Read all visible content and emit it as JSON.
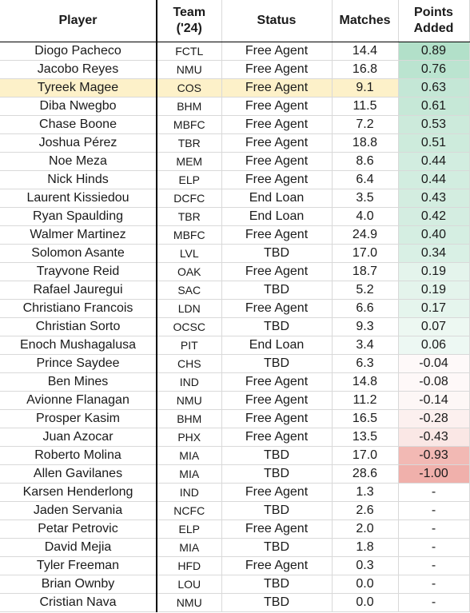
{
  "headers": {
    "player": "Player",
    "team_line1": "Team",
    "team_line2": "('24)",
    "status": "Status",
    "matches": "Matches",
    "pa_line1": "Points",
    "pa_line2": "Added"
  },
  "highlighted_player": "Tyreek Magee",
  "colors": {
    "highlight": "#fdf1c9",
    "positive": "#57bb8a",
    "negative": "#e67c73",
    "neutral": "#ffffff"
  },
  "rows": [
    {
      "player": "Diogo Pacheco",
      "team": "FCTL",
      "status": "Free Agent",
      "matches": "14.4",
      "points_added": "0.89",
      "value": 0.89
    },
    {
      "player": "Jacobo Reyes",
      "team": "NMU",
      "status": "Free Agent",
      "matches": "16.8",
      "points_added": "0.76",
      "value": 0.76
    },
    {
      "player": "Tyreek Magee",
      "team": "COS",
      "status": "Free Agent",
      "matches": "9.1",
      "points_added": "0.63",
      "value": 0.63
    },
    {
      "player": "Diba Nwegbo",
      "team": "BHM",
      "status": "Free Agent",
      "matches": "11.5",
      "points_added": "0.61",
      "value": 0.61
    },
    {
      "player": "Chase Boone",
      "team": "MBFC",
      "status": "Free Agent",
      "matches": "7.2",
      "points_added": "0.53",
      "value": 0.53
    },
    {
      "player": "Joshua Pérez",
      "team": "TBR",
      "status": "Free Agent",
      "matches": "18.8",
      "points_added": "0.51",
      "value": 0.51
    },
    {
      "player": "Noe Meza",
      "team": "MEM",
      "status": "Free Agent",
      "matches": "8.6",
      "points_added": "0.44",
      "value": 0.44
    },
    {
      "player": "Nick Hinds",
      "team": "ELP",
      "status": "Free Agent",
      "matches": "6.4",
      "points_added": "0.44",
      "value": 0.44
    },
    {
      "player": "Laurent Kissiedou",
      "team": "DCFC",
      "status": "End Loan",
      "matches": "3.5",
      "points_added": "0.43",
      "value": 0.43
    },
    {
      "player": "Ryan Spaulding",
      "team": "TBR",
      "status": "End Loan",
      "matches": "4.0",
      "points_added": "0.42",
      "value": 0.42
    },
    {
      "player": "Walmer Martinez",
      "team": "MBFC",
      "status": "Free Agent",
      "matches": "24.9",
      "points_added": "0.40",
      "value": 0.4
    },
    {
      "player": "Solomon Asante",
      "team": "LVL",
      "status": "TBD",
      "matches": "17.0",
      "points_added": "0.34",
      "value": 0.34
    },
    {
      "player": "Trayvone Reid",
      "team": "OAK",
      "status": "Free Agent",
      "matches": "18.7",
      "points_added": "0.19",
      "value": 0.19
    },
    {
      "player": "Rafael Jauregui",
      "team": "SAC",
      "status": "TBD",
      "matches": "5.2",
      "points_added": "0.19",
      "value": 0.19
    },
    {
      "player": "Christiano Francois",
      "team": "LDN",
      "status": "Free Agent",
      "matches": "6.6",
      "points_added": "0.17",
      "value": 0.17
    },
    {
      "player": "Christian Sorto",
      "team": "OCSC",
      "status": "TBD",
      "matches": "9.3",
      "points_added": "0.07",
      "value": 0.07
    },
    {
      "player": "Enoch Mushagalusa",
      "team": "PIT",
      "status": "End Loan",
      "matches": "3.4",
      "points_added": "0.06",
      "value": 0.06
    },
    {
      "player": "Prince Saydee",
      "team": "CHS",
      "status": "TBD",
      "matches": "6.3",
      "points_added": "-0.04",
      "value": -0.04
    },
    {
      "player": "Ben Mines",
      "team": "IND",
      "status": "Free Agent",
      "matches": "14.8",
      "points_added": "-0.08",
      "value": -0.08
    },
    {
      "player": "Avionne Flanagan",
      "team": "NMU",
      "status": "Free Agent",
      "matches": "11.2",
      "points_added": "-0.14",
      "value": -0.14
    },
    {
      "player": "Prosper Kasim",
      "team": "BHM",
      "status": "Free Agent",
      "matches": "16.5",
      "points_added": "-0.28",
      "value": -0.28
    },
    {
      "player": "Juan Azocar",
      "team": "PHX",
      "status": "Free Agent",
      "matches": "13.5",
      "points_added": "-0.43",
      "value": -0.43
    },
    {
      "player": "Roberto Molina",
      "team": "MIA",
      "status": "TBD",
      "matches": "17.0",
      "points_added": "-0.93",
      "value": -0.93
    },
    {
      "player": "Allen Gavilanes",
      "team": "MIA",
      "status": "TBD",
      "matches": "28.6",
      "points_added": "-1.00",
      "value": -1.0
    },
    {
      "player": "Karsen Henderlong",
      "team": "IND",
      "status": "Free Agent",
      "matches": "1.3",
      "points_added": "-",
      "value": null
    },
    {
      "player": "Jaden Servania",
      "team": "NCFC",
      "status": "TBD",
      "matches": "2.6",
      "points_added": "-",
      "value": null
    },
    {
      "player": "Petar Petrovic",
      "team": "ELP",
      "status": "Free Agent",
      "matches": "2.0",
      "points_added": "-",
      "value": null
    },
    {
      "player": "David Mejia",
      "team": "MIA",
      "status": "TBD",
      "matches": "1.8",
      "points_added": "-",
      "value": null
    },
    {
      "player": "Tyler Freeman",
      "team": "HFD",
      "status": "Free Agent",
      "matches": "0.3",
      "points_added": "-",
      "value": null
    },
    {
      "player": "Brian Ownby",
      "team": "LOU",
      "status": "TBD",
      "matches": "0.0",
      "points_added": "-",
      "value": null
    },
    {
      "player": "Cristian Nava",
      "team": "NMU",
      "status": "TBD",
      "matches": "0.0",
      "points_added": "-",
      "value": null
    }
  ]
}
